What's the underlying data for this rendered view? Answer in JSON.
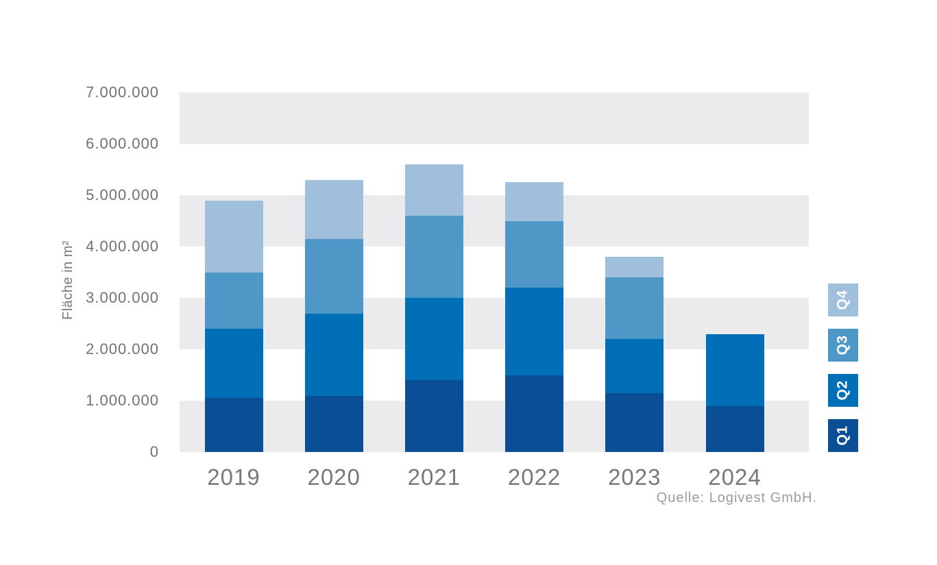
{
  "chart_data": {
    "type": "bar",
    "stacked": true,
    "title": "",
    "ylabel": "Fläche in m²",
    "xlabel": "",
    "categories": [
      "2019",
      "2020",
      "2021",
      "2022",
      "2023",
      "2024"
    ],
    "series": [
      {
        "name": "Q1",
        "color": "#0a4e96",
        "values": [
          1050000,
          1100000,
          1400000,
          1500000,
          1150000,
          900000
        ]
      },
      {
        "name": "Q2",
        "color": "#006fb8",
        "values": [
          1350000,
          1600000,
          1600000,
          1700000,
          1050000,
          1400000
        ]
      },
      {
        "name": "Q3",
        "color": "#4e98c8",
        "values": [
          1100000,
          1450000,
          1600000,
          1300000,
          1200000,
          0
        ]
      },
      {
        "name": "Q4",
        "color": "#9fbfdc",
        "values": [
          1400000,
          1150000,
          1000000,
          750000,
          400000,
          0
        ]
      }
    ],
    "totals": [
      4900000,
      5300000,
      5600000,
      5250000,
      3800000,
      2300000
    ],
    "ylim": [
      0,
      7000000
    ],
    "ytick_step": 1000000,
    "ytick_labels": [
      "0",
      "1.000.000",
      "2.000.000",
      "3.000.000",
      "4.000.000",
      "5.000.000",
      "6.000.000",
      "7.000.000"
    ],
    "grid": "alternating horizontal bands",
    "band_color": "#ebebed",
    "legend_position": "right",
    "legend_order": [
      "Q4",
      "Q3",
      "Q2",
      "Q1"
    ],
    "source": "Quelle: Logivest GmbH."
  }
}
